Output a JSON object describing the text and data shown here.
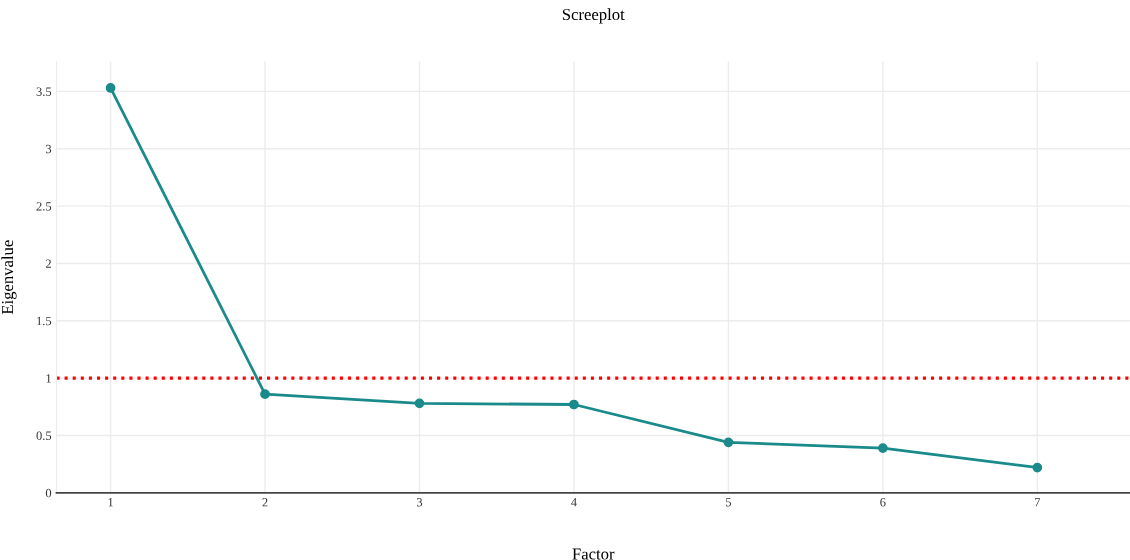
{
  "chart_data": {
    "type": "line",
    "title": "Screeplot",
    "xlabel": "Factor",
    "ylabel": "Eigenvalue",
    "x": [
      1,
      2,
      3,
      4,
      5,
      6,
      7
    ],
    "series": [
      {
        "color": "#1a8a8a",
        "values": [
          3.53,
          0.86,
          0.78,
          0.77,
          0.44,
          0.39,
          0.22
        ]
      }
    ],
    "xlim": [
      0.65,
      7.6
    ],
    "xticks": [
      1,
      2,
      3,
      4,
      5,
      6,
      7
    ],
    "ylim": [
      0,
      3.76
    ],
    "yticks": [
      0,
      0.5,
      1,
      1.5,
      2,
      2.5,
      3,
      3.5
    ],
    "ref_lines": [
      {
        "axis": "y",
        "value": 1,
        "color": "#ff0000",
        "line_style": "dotted"
      }
    ],
    "grid": true,
    "marker": "circle",
    "line_style": "solid"
  }
}
